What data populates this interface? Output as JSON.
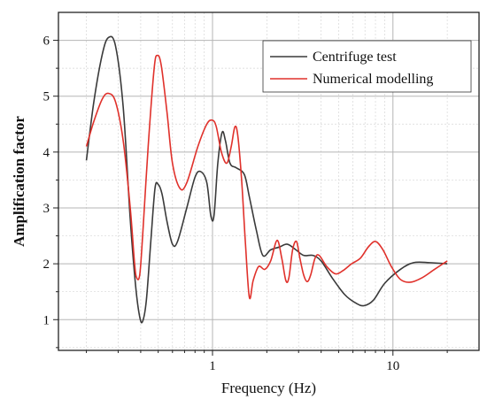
{
  "chart_data": {
    "type": "line",
    "title": "",
    "xlabel": "Frequency (Hz)",
    "ylabel": "Amplification factor",
    "x_scale": "log",
    "xlim": [
      0.14,
      30
    ],
    "ylim": [
      0.45,
      6.5
    ],
    "x_ticks": [
      {
        "value": 1,
        "label": "1"
      },
      {
        "value": 10,
        "label": "10"
      }
    ],
    "y_ticks": [
      {
        "value": 1,
        "label": "1"
      },
      {
        "value": 2,
        "label": "2"
      },
      {
        "value": 3,
        "label": "3"
      },
      {
        "value": 4,
        "label": "4"
      },
      {
        "value": 5,
        "label": "5"
      },
      {
        "value": 6,
        "label": "6"
      }
    ],
    "grid": true,
    "legend": "top-right",
    "series": [
      {
        "name": "Centrifuge test",
        "color": "#3a3a3a",
        "points": [
          [
            0.2,
            3.85
          ],
          [
            0.22,
            4.9
          ],
          [
            0.245,
            5.75
          ],
          [
            0.265,
            6.05
          ],
          [
            0.29,
            5.9
          ],
          [
            0.32,
            4.8
          ],
          [
            0.35,
            2.8
          ],
          [
            0.375,
            1.6
          ],
          [
            0.395,
            1.05
          ],
          [
            0.41,
            0.97
          ],
          [
            0.43,
            1.35
          ],
          [
            0.455,
            2.4
          ],
          [
            0.48,
            3.35
          ],
          [
            0.5,
            3.42
          ],
          [
            0.525,
            3.25
          ],
          [
            0.56,
            2.75
          ],
          [
            0.6,
            2.35
          ],
          [
            0.64,
            2.4
          ],
          [
            0.72,
            3.0
          ],
          [
            0.8,
            3.55
          ],
          [
            0.86,
            3.65
          ],
          [
            0.93,
            3.45
          ],
          [
            0.98,
            2.85
          ],
          [
            1.02,
            2.87
          ],
          [
            1.07,
            3.8
          ],
          [
            1.13,
            4.35
          ],
          [
            1.18,
            4.2
          ],
          [
            1.25,
            3.8
          ],
          [
            1.35,
            3.72
          ],
          [
            1.5,
            3.6
          ],
          [
            1.6,
            3.2
          ],
          [
            1.75,
            2.6
          ],
          [
            1.9,
            2.15
          ],
          [
            2.1,
            2.25
          ],
          [
            2.35,
            2.3
          ],
          [
            2.6,
            2.35
          ],
          [
            2.9,
            2.25
          ],
          [
            3.2,
            2.15
          ],
          [
            3.6,
            2.15
          ],
          [
            4.0,
            2.05
          ],
          [
            4.6,
            1.75
          ],
          [
            5.4,
            1.45
          ],
          [
            6.2,
            1.3
          ],
          [
            6.9,
            1.25
          ],
          [
            7.8,
            1.35
          ],
          [
            9.0,
            1.65
          ],
          [
            11.0,
            1.9
          ],
          [
            13.0,
            2.02
          ],
          [
            16.0,
            2.02
          ],
          [
            20.0,
            2.0
          ]
        ]
      },
      {
        "name": "Numerical modelling",
        "color": "#e0312b",
        "points": [
          [
            0.2,
            4.1
          ],
          [
            0.22,
            4.55
          ],
          [
            0.245,
            4.95
          ],
          [
            0.265,
            5.05
          ],
          [
            0.29,
            4.9
          ],
          [
            0.32,
            4.2
          ],
          [
            0.35,
            3.0
          ],
          [
            0.37,
            2.0
          ],
          [
            0.38,
            1.75
          ],
          [
            0.395,
            1.8
          ],
          [
            0.41,
            2.5
          ],
          [
            0.44,
            4.1
          ],
          [
            0.475,
            5.5
          ],
          [
            0.495,
            5.73
          ],
          [
            0.52,
            5.55
          ],
          [
            0.56,
            4.7
          ],
          [
            0.6,
            3.8
          ],
          [
            0.66,
            3.35
          ],
          [
            0.72,
            3.45
          ],
          [
            0.83,
            4.1
          ],
          [
            0.93,
            4.5
          ],
          [
            1.0,
            4.57
          ],
          [
            1.05,
            4.45
          ],
          [
            1.12,
            4.0
          ],
          [
            1.2,
            3.8
          ],
          [
            1.27,
            4.1
          ],
          [
            1.33,
            4.45
          ],
          [
            1.38,
            4.3
          ],
          [
            1.45,
            3.5
          ],
          [
            1.52,
            2.4
          ],
          [
            1.6,
            1.4
          ],
          [
            1.68,
            1.7
          ],
          [
            1.8,
            1.95
          ],
          [
            1.95,
            1.9
          ],
          [
            2.1,
            2.05
          ],
          [
            2.28,
            2.42
          ],
          [
            2.42,
            2.1
          ],
          [
            2.55,
            1.7
          ],
          [
            2.65,
            1.75
          ],
          [
            2.78,
            2.25
          ],
          [
            2.92,
            2.4
          ],
          [
            3.05,
            2.1
          ],
          [
            3.2,
            1.8
          ],
          [
            3.35,
            1.68
          ],
          [
            3.5,
            1.8
          ],
          [
            3.7,
            2.1
          ],
          [
            3.9,
            2.15
          ],
          [
            4.3,
            1.95
          ],
          [
            4.8,
            1.82
          ],
          [
            5.3,
            1.88
          ],
          [
            5.9,
            2.0
          ],
          [
            6.6,
            2.1
          ],
          [
            7.3,
            2.3
          ],
          [
            8.0,
            2.4
          ],
          [
            8.8,
            2.25
          ],
          [
            9.8,
            1.95
          ],
          [
            11.0,
            1.72
          ],
          [
            12.5,
            1.67
          ],
          [
            14.5,
            1.75
          ],
          [
            17.0,
            1.9
          ],
          [
            20.0,
            2.05
          ]
        ]
      }
    ]
  }
}
